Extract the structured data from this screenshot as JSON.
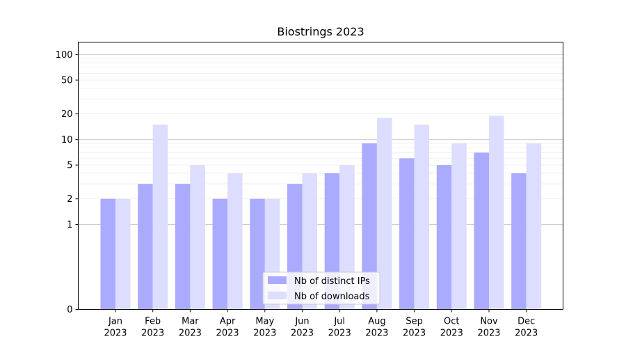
{
  "chart_data": {
    "type": "bar",
    "title": "Biostrings 2023",
    "xlabel": "",
    "ylabel": "",
    "y_scale": "symlog",
    "ylim": [
      0,
      140
    ],
    "yticks": [
      0,
      1,
      2,
      5,
      10,
      20,
      50,
      100
    ],
    "grid": "horizontal",
    "legend_position": "bottom-center",
    "categories": [
      [
        "Jan",
        "2023"
      ],
      [
        "Feb",
        "2023"
      ],
      [
        "Mar",
        "2023"
      ],
      [
        "Apr",
        "2023"
      ],
      [
        "May",
        "2023"
      ],
      [
        "Jun",
        "2023"
      ],
      [
        "Jul",
        "2023"
      ],
      [
        "Aug",
        "2023"
      ],
      [
        "Sep",
        "2023"
      ],
      [
        "Oct",
        "2023"
      ],
      [
        "Nov",
        "2023"
      ],
      [
        "Dec",
        "2023"
      ]
    ],
    "series": [
      {
        "name": "Nb of distinct IPs",
        "color": "#aaaaff",
        "values": [
          2,
          3,
          3,
          2,
          2,
          3,
          4,
          9,
          6,
          5,
          7,
          4
        ]
      },
      {
        "name": "Nb of downloads",
        "color": "#ddddff",
        "values": [
          2,
          15,
          5,
          4,
          2,
          4,
          5,
          18,
          15,
          9,
          19,
          9
        ]
      }
    ]
  }
}
